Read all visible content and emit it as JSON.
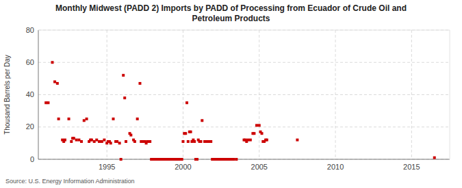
{
  "chart_data": {
    "type": "scatter",
    "title": "Monthly Midwest (PADD 2) Imports by PADD of Processing from Ecuador of Crude Oil and\nPetroleum Products",
    "ylabel": "Thousand Barrels per Day",
    "source": "Source: U.S. Energy Information Administration",
    "color": "#cc0000",
    "marker": "square",
    "grid": true,
    "xlim": [
      1990.5,
      2017.5
    ],
    "xticks": [
      1995,
      2000,
      2005,
      2010,
      2015
    ],
    "ylim": [
      0,
      80
    ],
    "yticks": [
      0,
      20,
      40,
      60,
      80
    ],
    "x": [
      1991.0,
      1991.15,
      1991.42,
      1991.58,
      1991.75,
      1991.83,
      1992.08,
      1992.17,
      1992.25,
      1992.5,
      1992.67,
      1992.75,
      1992.83,
      1993.0,
      1993.17,
      1993.33,
      1993.5,
      1993.67,
      1993.83,
      1993.92,
      1994.0,
      1994.17,
      1994.33,
      1994.5,
      1994.67,
      1994.83,
      1995.0,
      1995.08,
      1995.17,
      1995.25,
      1995.42,
      1995.58,
      1995.67,
      1995.83,
      1995.92,
      1996.08,
      1996.17,
      1996.25,
      1996.5,
      1996.58,
      1996.75,
      1996.83,
      1997.0,
      1997.17,
      1997.25,
      1997.33,
      1997.42,
      1997.5,
      1997.58,
      1997.67,
      1997.75,
      1997.83,
      1997.92,
      1998.0,
      1998.08,
      1998.17,
      1998.25,
      1998.33,
      1998.42,
      1998.5,
      1998.58,
      1998.67,
      1998.75,
      1998.83,
      1998.92,
      1999.0,
      1999.08,
      1999.17,
      1999.25,
      1999.33,
      1999.42,
      1999.5,
      1999.58,
      1999.67,
      1999.75,
      1999.83,
      1999.92,
      2000.0,
      2000.08,
      2000.17,
      2000.25,
      2000.33,
      2000.42,
      2000.5,
      2000.58,
      2000.67,
      2000.75,
      2000.83,
      2000.92,
      2001.0,
      2001.08,
      2001.17,
      2001.25,
      2001.42,
      2001.5,
      2001.58,
      2001.67,
      2001.75,
      2001.83,
      2001.92,
      2002.0,
      2002.08,
      2002.17,
      2002.25,
      2002.33,
      2002.42,
      2002.5,
      2002.58,
      2002.67,
      2002.75,
      2002.83,
      2002.92,
      2003.0,
      2003.08,
      2003.17,
      2003.25,
      2003.33,
      2003.5,
      2004.0,
      2004.08,
      2004.17,
      2004.25,
      2004.42,
      2004.58,
      2004.67,
      2004.83,
      2005.0,
      2005.08,
      2005.17,
      2005.25,
      2005.33,
      2005.42,
      2005.5,
      2007.5,
      2016.5
    ],
    "values": [
      35,
      35,
      60,
      48,
      47,
      25,
      12,
      11,
      12,
      25,
      11,
      13,
      13,
      12,
      12,
      11,
      24,
      25,
      11,
      12,
      12,
      11,
      12,
      11,
      11,
      12,
      10,
      11,
      11,
      10,
      25,
      11,
      11,
      10,
      0,
      52,
      38,
      11,
      16,
      15,
      12,
      11,
      25,
      47,
      11,
      11,
      11,
      11,
      10,
      11,
      11,
      11,
      0,
      0,
      0,
      0,
      0,
      0,
      0,
      0,
      0,
      0,
      0,
      0,
      0,
      0,
      0,
      0,
      0,
      0,
      0,
      0,
      0,
      0,
      0,
      0,
      0,
      11,
      16,
      16,
      35,
      11,
      17,
      17,
      11,
      12,
      11,
      0,
      0,
      12,
      11,
      11,
      24,
      11,
      11,
      11,
      11,
      11,
      11,
      0,
      0,
      0,
      0,
      0,
      0,
      0,
      0,
      0,
      0,
      0,
      0,
      0,
      0,
      0,
      0,
      0,
      0,
      0,
      12,
      12,
      11,
      12,
      12,
      16,
      16,
      21,
      21,
      17,
      16,
      11,
      11,
      12,
      12,
      12,
      1
    ]
  }
}
